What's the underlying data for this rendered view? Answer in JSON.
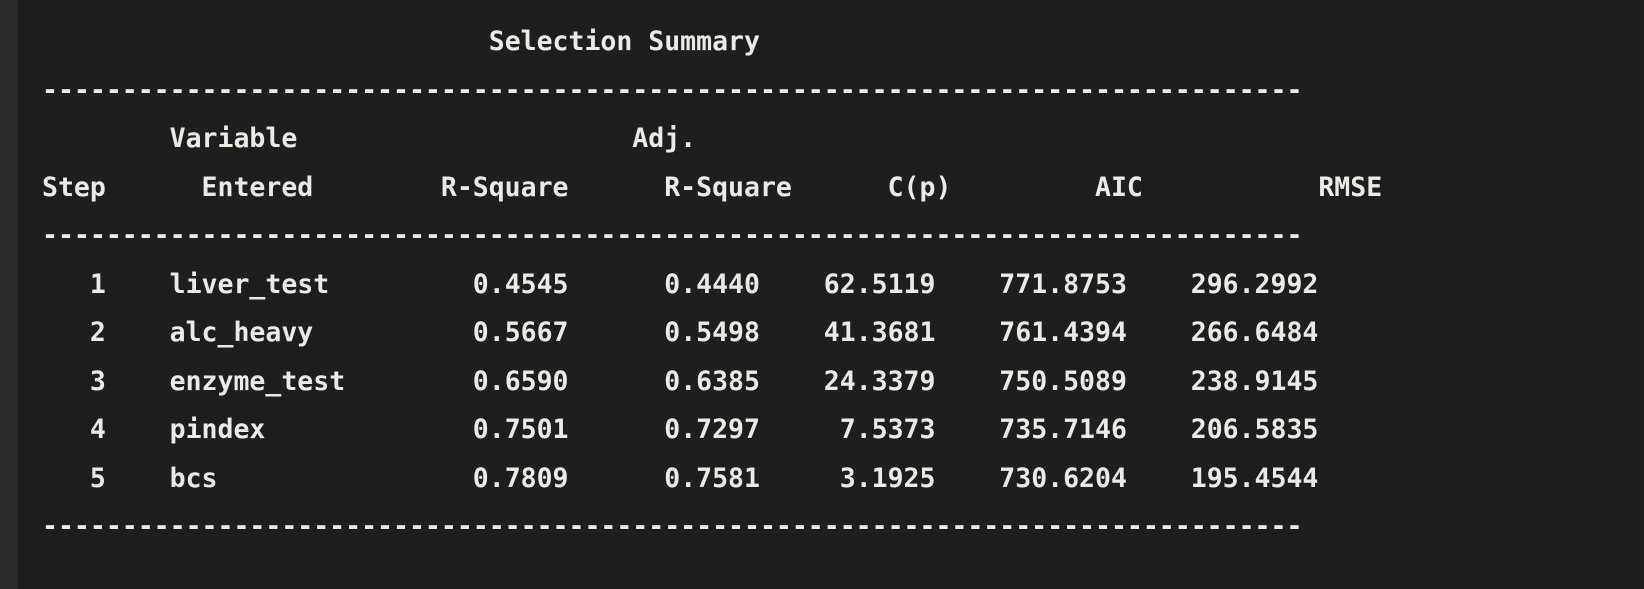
{
  "window": {
    "title": "Selection Summary"
  },
  "table": {
    "rule": "-------------------------------------------------------------------------------",
    "header_row1": "        Variable                     Adj.                                        ",
    "header_row2": "Step      Entered        R-Square      R-Square      C(p)         AIC           RMSE",
    "columns": [
      "Step",
      "Variable Entered",
      "R-Square",
      "Adj. R-Square",
      "C(p)",
      "AIC",
      "RMSE"
    ],
    "rows": [
      {
        "step": "1",
        "variable": "liver_test",
        "r_square": "0.4545",
        "adj_r_square": "0.4440",
        "cp": "62.5119",
        "aic": "771.8753",
        "rmse": "296.2992"
      },
      {
        "step": "2",
        "variable": "alc_heavy",
        "r_square": "0.5667",
        "adj_r_square": "0.5498",
        "cp": "41.3681",
        "aic": "761.4394",
        "rmse": "266.6484"
      },
      {
        "step": "3",
        "variable": "enzyme_test",
        "r_square": "0.6590",
        "adj_r_square": "0.6385",
        "cp": "24.3379",
        "aic": "750.5089",
        "rmse": "238.9145"
      },
      {
        "step": "4",
        "variable": "pindex",
        "r_square": "0.7501",
        "adj_r_square": "0.7297",
        "cp": "7.5373",
        "aic": "735.7146",
        "rmse": "206.5835"
      },
      {
        "step": "5",
        "variable": "bcs",
        "r_square": "0.7809",
        "adj_r_square": "0.7581",
        "cp": "3.1925",
        "aic": "730.6204",
        "rmse": "195.4544"
      }
    ]
  },
  "colors": {
    "background": "#1e1e1e",
    "gutter": "#2b2b2b",
    "text": "#ebebe6"
  }
}
